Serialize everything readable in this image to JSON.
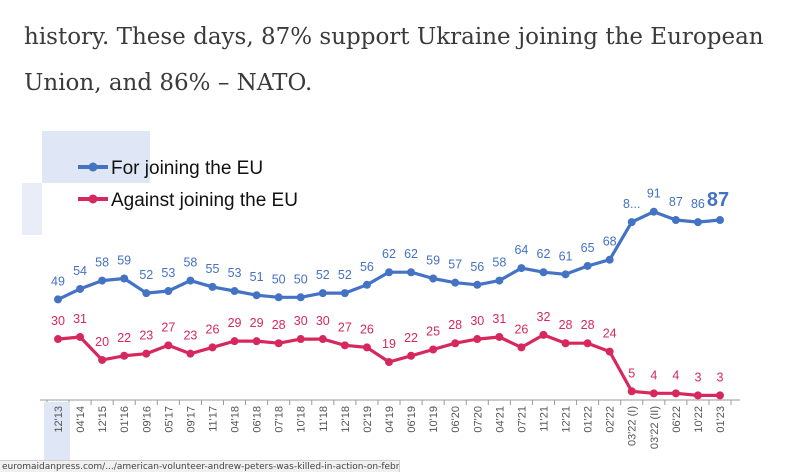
{
  "article": {
    "line1": "history. These days, 87% support Ukraine joining the European",
    "line2": "Union, and 86% – NATO."
  },
  "status_url": "euromaidanpress.com/.../american-volunteer-andrew-peters-was-killed-in-action-on-februar...",
  "chart_data": {
    "type": "line",
    "title": "",
    "xlabel": "",
    "ylabel": "",
    "ylim": [
      0,
      100
    ],
    "legend_position": "top-left",
    "grid": false,
    "categories": [
      "12'13",
      "04'14",
      "12'15",
      "01'16",
      "09'16",
      "05'17",
      "09'17",
      "11'17",
      "04'18",
      "06'18",
      "07'18",
      "10'18",
      "11'18",
      "12'18",
      "02'19",
      "04'19",
      "06'19",
      "10'19",
      "06'20",
      "07'20",
      "04'21",
      "07'21",
      "11'21",
      "12'21",
      "01'22",
      "02'22",
      "03'22 (I)",
      "03'22 (II)",
      "06'22",
      "10'22",
      "01'23"
    ],
    "series": [
      {
        "name": "For joining the EU",
        "color": "#4472c4",
        "values": [
          49,
          54,
          58,
          59,
          52,
          53,
          58,
          55,
          53,
          51,
          50,
          50,
          52,
          52,
          56,
          62,
          62,
          59,
          57,
          56,
          58,
          64,
          62,
          61,
          65,
          68,
          86,
          91,
          87,
          86,
          87
        ],
        "labels": [
          "49",
          "54",
          "58",
          "59",
          "52",
          "53",
          "58",
          "55",
          "53",
          "51",
          "50",
          "50",
          "52",
          "52",
          "56",
          "62",
          "62",
          "59",
          "57",
          "56",
          "58",
          "64",
          "62",
          "61",
          "65",
          "68",
          "8...",
          "91",
          "87",
          "86",
          "87"
        ]
      },
      {
        "name": "Against joining the EU",
        "color": "#d6285c",
        "values": [
          30,
          31,
          20,
          22,
          23,
          27,
          23,
          26,
          29,
          29,
          28,
          30,
          30,
          27,
          26,
          19,
          22,
          25,
          28,
          30,
          31,
          26,
          32,
          28,
          28,
          24,
          5,
          4,
          4,
          3,
          3
        ],
        "labels": [
          "30",
          "31",
          "20",
          "22",
          "23",
          "27",
          "23",
          "26",
          "29",
          "29",
          "28",
          "30",
          "30",
          "27",
          "26",
          "19",
          "22",
          "25",
          "28",
          "30",
          "31",
          "26",
          "32",
          "28",
          "28",
          "24",
          "5",
          "4",
          "4",
          "3",
          "3"
        ]
      }
    ]
  }
}
